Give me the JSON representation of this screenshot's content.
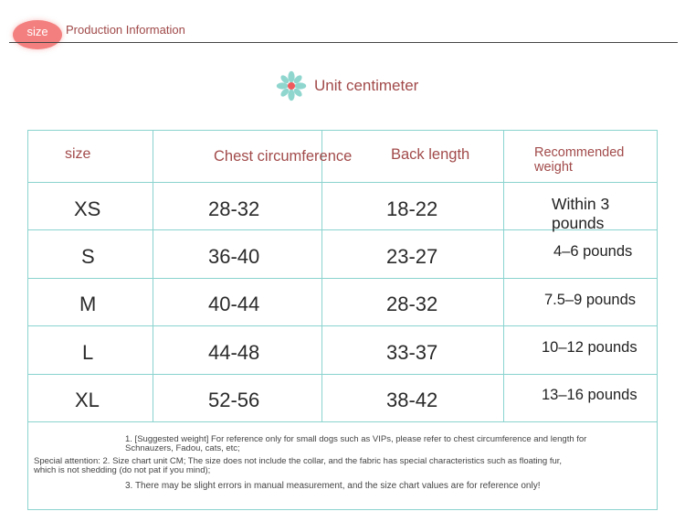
{
  "header": {
    "badge": "size",
    "title": "Production Information"
  },
  "unit_label": "Unit centimeter",
  "table": {
    "columns": [
      "size",
      "Chest circumference",
      "Back length",
      "Recommended weight"
    ],
    "rows": [
      {
        "size": "XS",
        "chest": "28-32",
        "back": "18-22",
        "weight": "Within 3 pounds"
      },
      {
        "size": "S",
        "chest": "36-40",
        "back": "23-27",
        "weight": "4–6 pounds"
      },
      {
        "size": "M",
        "chest": "40-44",
        "back": "28-32",
        "weight": "7.5–9 pounds"
      },
      {
        "size": "L",
        "chest": "44-48",
        "back": "33-37",
        "weight": "10–12 pounds"
      },
      {
        "size": "XL",
        "chest": "52-56",
        "back": "38-42",
        "weight": "13–16 pounds"
      }
    ]
  },
  "notes": {
    "line1a": "1. [Suggested weight] For reference only for small dogs such as VIPs, please refer to chest circumference and length for",
    "line1b": "Schnauzers, Fadou, cats, etc;",
    "line2a": "Special attention: 2. Size chart unit CM; The size does not include the collar, and the fabric has special characteristics such as floating fur,",
    "line2b": "which is not shedding (do not pat if you mind);",
    "line3": "3. There may be slight errors in manual measurement, and the size chart values are for reference only!"
  },
  "colors": {
    "accent": "#f3807f",
    "border": "#8ad3cf",
    "header_text": "#a24a4a"
  },
  "icons": {
    "unit": "flower-icon"
  }
}
